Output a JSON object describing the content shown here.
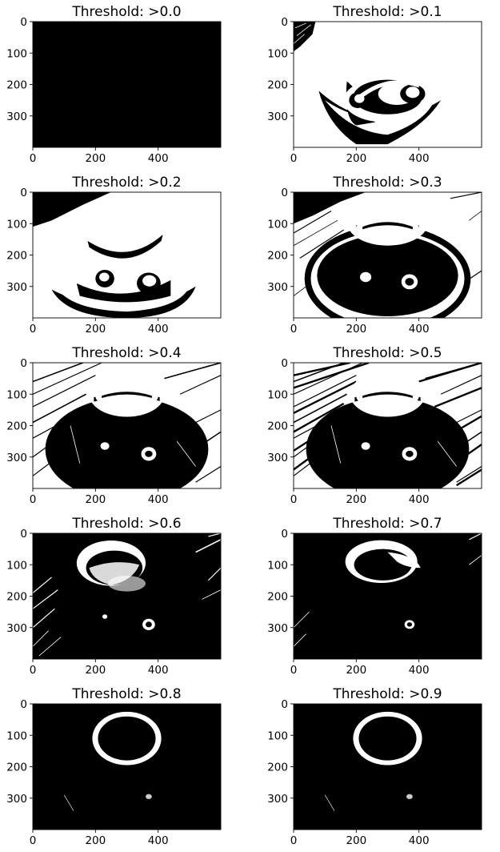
{
  "figure": {
    "panels": [
      {
        "title": "Threshold: >0.0",
        "variant": "all-black"
      },
      {
        "title": "Threshold: >0.1",
        "variant": "t01"
      },
      {
        "title": "Threshold: >0.2",
        "variant": "t02"
      },
      {
        "title": "Threshold: >0.3",
        "variant": "t03"
      },
      {
        "title": "Threshold: >0.4",
        "variant": "t04"
      },
      {
        "title": "Threshold: >0.5",
        "variant": "t05"
      },
      {
        "title": "Threshold: >0.6",
        "variant": "t06"
      },
      {
        "title": "Threshold: >0.7",
        "variant": "t07"
      },
      {
        "title": "Threshold: >0.8",
        "variant": "ring"
      },
      {
        "title": "Threshold: >0.9",
        "variant": "ring"
      }
    ],
    "x_ticks": [
      "0",
      "200",
      "400"
    ],
    "y_ticks": [
      "0",
      "100",
      "200",
      "300"
    ],
    "colors": {
      "foreground": "#000000",
      "background": "#ffffff"
    }
  }
}
